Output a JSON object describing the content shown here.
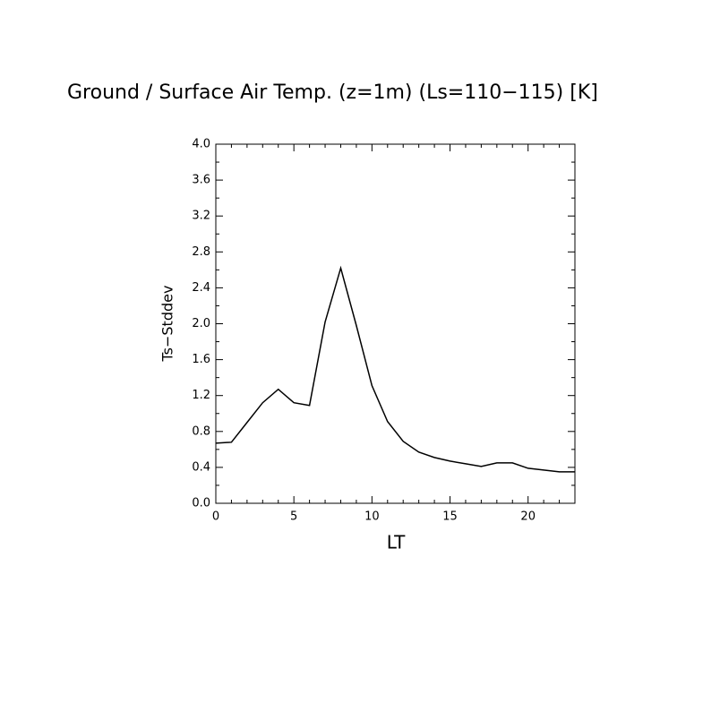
{
  "chart_data": {
    "type": "line",
    "title": "Ground / Surface Air Temp. (z=1m) (Ls=110−115) [K]",
    "x_label": "LT",
    "y_label": "Ts−Stddev",
    "x": [
      0,
      1,
      2,
      3,
      4,
      5,
      6,
      7,
      8,
      9,
      10,
      11,
      12,
      13,
      14,
      15,
      16,
      17,
      18,
      19,
      20,
      21,
      22,
      23
    ],
    "series": [
      {
        "name": "Ts-Stddev",
        "color": "#000000",
        "values": [
          0.67,
          0.68,
          0.9,
          1.12,
          1.27,
          1.12,
          1.09,
          2.02,
          2.62,
          1.98,
          1.31,
          0.91,
          0.69,
          0.57,
          0.51,
          0.47,
          0.44,
          0.41,
          0.45,
          0.45,
          0.39,
          0.37,
          0.35,
          0.35
        ]
      }
    ],
    "xlim": [
      0,
      23
    ],
    "xticks": [
      0,
      5,
      10,
      15,
      20
    ],
    "ylim": [
      0,
      4
    ],
    "yticks": [
      {
        "value": 0,
        "label": "0.0"
      },
      0.4,
      0.8,
      1.2,
      1.6,
      {
        "value": 2,
        "label": "2.0"
      },
      2.4,
      2.8,
      3.2,
      3.6,
      {
        "value": 4,
        "label": "4.0"
      }
    ]
  }
}
